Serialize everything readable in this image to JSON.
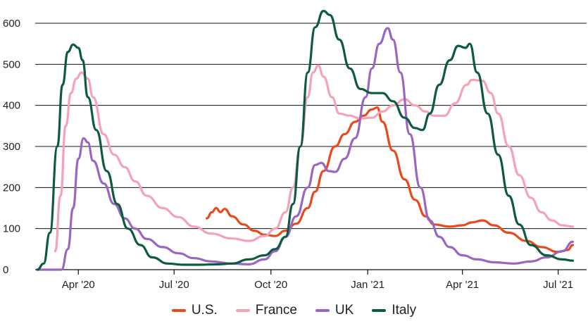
{
  "chart_data": {
    "type": "line",
    "ylim": [
      0,
      600
    ],
    "yticks": [
      "0",
      "100",
      "200",
      "300",
      "400",
      "500",
      "600"
    ],
    "xticks": [
      {
        "date": "2020-04-01",
        "label": "Apr '20"
      },
      {
        "date": "2020-07-01",
        "label": "Jul '20"
      },
      {
        "date": "2020-10-01",
        "label": "Oct '20"
      },
      {
        "date": "2021-01-01",
        "label": "Jan '21"
      },
      {
        "date": "2021-04-01",
        "label": "Apr '21"
      },
      {
        "date": "2021-07-01",
        "label": "Jul '21"
      }
    ],
    "xlim": [
      "2020-02-20",
      "2021-07-20"
    ],
    "grid": true,
    "legend": "bottom",
    "series": [
      {
        "name": "U.S.",
        "color": "#e8491d",
        "points": [
          [
            "2020-08-01",
            125
          ],
          [
            "2020-08-06",
            140
          ],
          [
            "2020-08-10",
            150
          ],
          [
            "2020-08-14",
            140
          ],
          [
            "2020-08-18",
            148
          ],
          [
            "2020-08-25",
            130
          ],
          [
            "2020-09-05",
            110
          ],
          [
            "2020-09-15",
            95
          ],
          [
            "2020-09-25",
            85
          ],
          [
            "2020-10-05",
            82
          ],
          [
            "2020-10-15",
            95
          ],
          [
            "2020-10-25",
            112
          ],
          [
            "2020-11-05",
            150
          ],
          [
            "2020-11-12",
            190
          ],
          [
            "2020-11-20",
            240
          ],
          [
            "2020-12-01",
            300
          ],
          [
            "2020-12-10",
            330
          ],
          [
            "2020-12-20",
            360
          ],
          [
            "2020-12-28",
            375
          ],
          [
            "2021-01-05",
            390
          ],
          [
            "2021-01-10",
            395
          ],
          [
            "2021-01-15",
            360
          ],
          [
            "2021-01-25",
            290
          ],
          [
            "2021-02-05",
            220
          ],
          [
            "2021-02-15",
            170
          ],
          [
            "2021-02-25",
            130
          ],
          [
            "2021-03-05",
            110
          ],
          [
            "2021-03-20",
            105
          ],
          [
            "2021-04-01",
            108
          ],
          [
            "2021-04-10",
            115
          ],
          [
            "2021-04-20",
            120
          ],
          [
            "2021-05-01",
            108
          ],
          [
            "2021-05-15",
            90
          ],
          [
            "2021-06-01",
            70
          ],
          [
            "2021-06-15",
            55
          ],
          [
            "2021-07-01",
            43
          ],
          [
            "2021-07-10",
            48
          ],
          [
            "2021-07-15",
            60
          ]
        ]
      },
      {
        "name": "France",
        "color": "#f4a3b5",
        "points": [
          [
            "2020-03-10",
            45
          ],
          [
            "2020-03-15",
            180
          ],
          [
            "2020-03-20",
            350
          ],
          [
            "2020-03-25",
            430
          ],
          [
            "2020-03-30",
            465
          ],
          [
            "2020-04-04",
            480
          ],
          [
            "2020-04-10",
            465
          ],
          [
            "2020-04-15",
            420
          ],
          [
            "2020-04-25",
            330
          ],
          [
            "2020-05-05",
            280
          ],
          [
            "2020-05-15",
            250
          ],
          [
            "2020-05-25",
            215
          ],
          [
            "2020-06-05",
            180
          ],
          [
            "2020-06-20",
            150
          ],
          [
            "2020-07-05",
            128
          ],
          [
            "2020-07-20",
            105
          ],
          [
            "2020-08-05",
            88
          ],
          [
            "2020-08-25",
            76
          ],
          [
            "2020-09-10",
            70
          ],
          [
            "2020-09-25",
            82
          ],
          [
            "2020-10-05",
            100
          ],
          [
            "2020-10-15",
            140
          ],
          [
            "2020-10-22",
            200
          ],
          [
            "2020-10-29",
            300
          ],
          [
            "2020-11-05",
            420
          ],
          [
            "2020-11-10",
            480
          ],
          [
            "2020-11-15",
            497
          ],
          [
            "2020-11-20",
            470
          ],
          [
            "2020-11-28",
            420
          ],
          [
            "2020-12-05",
            380
          ],
          [
            "2020-12-15",
            375
          ],
          [
            "2020-12-25",
            368
          ],
          [
            "2021-01-05",
            370
          ],
          [
            "2021-01-15",
            385
          ],
          [
            "2021-01-25",
            400
          ],
          [
            "2021-02-05",
            415
          ],
          [
            "2021-02-15",
            400
          ],
          [
            "2021-02-25",
            385
          ],
          [
            "2021-03-05",
            375
          ],
          [
            "2021-03-15",
            375
          ],
          [
            "2021-03-25",
            405
          ],
          [
            "2021-04-05",
            450
          ],
          [
            "2021-04-10",
            462
          ],
          [
            "2021-04-20",
            460
          ],
          [
            "2021-04-28",
            430
          ],
          [
            "2021-05-05",
            380
          ],
          [
            "2021-05-15",
            300
          ],
          [
            "2021-05-25",
            230
          ],
          [
            "2021-06-05",
            175
          ],
          [
            "2021-06-15",
            140
          ],
          [
            "2021-06-25",
            120
          ],
          [
            "2021-07-05",
            108
          ],
          [
            "2021-07-15",
            105
          ]
        ]
      },
      {
        "name": "UK",
        "color": "#9966c2",
        "points": [
          [
            "2020-02-22",
            0
          ],
          [
            "2020-03-16",
            0
          ],
          [
            "2020-03-22",
            50
          ],
          [
            "2020-03-27",
            150
          ],
          [
            "2020-04-01",
            270
          ],
          [
            "2020-04-06",
            320
          ],
          [
            "2020-04-10",
            310
          ],
          [
            "2020-04-15",
            265
          ],
          [
            "2020-04-25",
            210
          ],
          [
            "2020-05-05",
            160
          ],
          [
            "2020-05-15",
            125
          ],
          [
            "2020-05-25",
            100
          ],
          [
            "2020-06-05",
            75
          ],
          [
            "2020-06-20",
            55
          ],
          [
            "2020-07-05",
            40
          ],
          [
            "2020-07-20",
            28
          ],
          [
            "2020-08-05",
            20
          ],
          [
            "2020-08-25",
            15
          ],
          [
            "2020-09-10",
            13
          ],
          [
            "2020-09-25",
            25
          ],
          [
            "2020-10-05",
            45
          ],
          [
            "2020-10-15",
            80
          ],
          [
            "2020-10-25",
            130
          ],
          [
            "2020-11-05",
            200
          ],
          [
            "2020-11-12",
            255
          ],
          [
            "2020-11-18",
            260
          ],
          [
            "2020-11-25",
            240
          ],
          [
            "2020-12-01",
            238
          ],
          [
            "2020-12-10",
            270
          ],
          [
            "2020-12-20",
            320
          ],
          [
            "2020-12-30",
            420
          ],
          [
            "2021-01-05",
            490
          ],
          [
            "2021-01-12",
            550
          ],
          [
            "2021-01-20",
            588
          ],
          [
            "2021-01-25",
            560
          ],
          [
            "2021-02-01",
            480
          ],
          [
            "2021-02-10",
            330
          ],
          [
            "2021-02-20",
            200
          ],
          [
            "2021-03-01",
            120
          ],
          [
            "2021-03-10",
            80
          ],
          [
            "2021-03-20",
            55
          ],
          [
            "2021-04-01",
            35
          ],
          [
            "2021-04-15",
            25
          ],
          [
            "2021-05-01",
            18
          ],
          [
            "2021-05-20",
            15
          ],
          [
            "2021-06-05",
            20
          ],
          [
            "2021-06-20",
            30
          ],
          [
            "2021-07-05",
            45
          ],
          [
            "2021-07-15",
            68
          ]
        ]
      },
      {
        "name": "Italy",
        "color": "#0d5a40",
        "points": [
          [
            "2020-02-22",
            0
          ],
          [
            "2020-02-28",
            15
          ],
          [
            "2020-03-05",
            90
          ],
          [
            "2020-03-12",
            300
          ],
          [
            "2020-03-17",
            450
          ],
          [
            "2020-03-22",
            530
          ],
          [
            "2020-03-27",
            548
          ],
          [
            "2020-04-01",
            540
          ],
          [
            "2020-04-05",
            510
          ],
          [
            "2020-04-10",
            420
          ],
          [
            "2020-04-18",
            340
          ],
          [
            "2020-04-28",
            240
          ],
          [
            "2020-05-08",
            160
          ],
          [
            "2020-05-18",
            100
          ],
          [
            "2020-05-30",
            60
          ],
          [
            "2020-06-10",
            30
          ],
          [
            "2020-06-25",
            15
          ],
          [
            "2020-07-10",
            12
          ],
          [
            "2020-07-25",
            12
          ],
          [
            "2020-08-10",
            13
          ],
          [
            "2020-08-25",
            15
          ],
          [
            "2020-09-10",
            25
          ],
          [
            "2020-09-25",
            35
          ],
          [
            "2020-10-05",
            50
          ],
          [
            "2020-10-15",
            80
          ],
          [
            "2020-10-22",
            160
          ],
          [
            "2020-10-29",
            300
          ],
          [
            "2020-11-05",
            480
          ],
          [
            "2020-11-12",
            590
          ],
          [
            "2020-11-20",
            630
          ],
          [
            "2020-11-26",
            620
          ],
          [
            "2020-12-05",
            560
          ],
          [
            "2020-12-15",
            490
          ],
          [
            "2020-12-25",
            440
          ],
          [
            "2021-01-05",
            430
          ],
          [
            "2021-01-15",
            430
          ],
          [
            "2021-01-25",
            410
          ],
          [
            "2021-02-05",
            370
          ],
          [
            "2021-02-15",
            345
          ],
          [
            "2021-02-22",
            340
          ],
          [
            "2021-03-01",
            380
          ],
          [
            "2021-03-10",
            450
          ],
          [
            "2021-03-20",
            510
          ],
          [
            "2021-03-28",
            545
          ],
          [
            "2021-04-04",
            540
          ],
          [
            "2021-04-08",
            550
          ],
          [
            "2021-04-15",
            480
          ],
          [
            "2021-04-25",
            380
          ],
          [
            "2021-05-05",
            280
          ],
          [
            "2021-05-15",
            180
          ],
          [
            "2021-05-25",
            110
          ],
          [
            "2021-06-05",
            60
          ],
          [
            "2021-06-20",
            35
          ],
          [
            "2021-07-05",
            25
          ],
          [
            "2021-07-15",
            22
          ]
        ]
      }
    ]
  },
  "legend": [
    {
      "label": "U.S.",
      "color": "#e8491d"
    },
    {
      "label": "France",
      "color": "#f4a3b5"
    },
    {
      "label": "UK",
      "color": "#9966c2"
    },
    {
      "label": "Italy",
      "color": "#0d5a40"
    }
  ]
}
